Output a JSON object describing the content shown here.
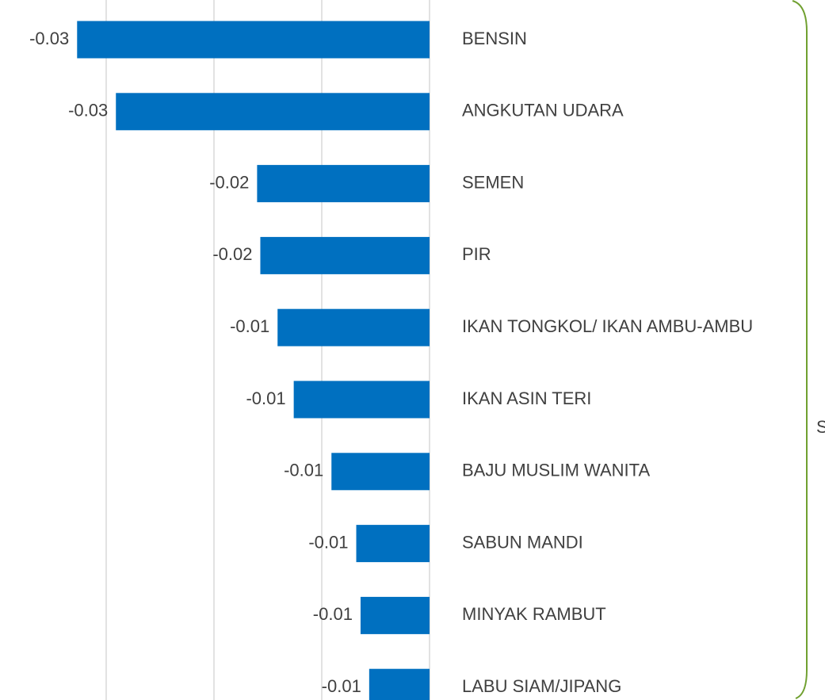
{
  "chart_data": {
    "type": "barh",
    "categories": [
      "BENSIN",
      "ANGKUTAN UDARA",
      "SEMEN",
      "PIR",
      "IKAN TONGKOL/ IKAN AMBU-AMBU",
      "IKAN ASIN TERI",
      "BAJU MUSLIM WANITA",
      "SABUN MANDI",
      "MINYAK RAMBUT",
      "LABU SIAM/JIPANG"
    ],
    "values": [
      -0.0327,
      -0.0291,
      -0.016,
      -0.0157,
      -0.0141,
      -0.0126,
      -0.0091,
      -0.0068,
      -0.0064,
      -0.0056
    ],
    "value_labels": [
      "-0.03",
      "-0.03",
      "-0.02",
      "-0.02",
      "-0.01",
      "-0.01",
      "-0.01",
      "-0.01",
      "-0.01",
      "-0.01"
    ],
    "color": "#0070c0",
    "xlim": [
      -0.04,
      0
    ],
    "xticks": [
      -0.04,
      -0.03,
      -0.02,
      -0.01,
      0
    ],
    "grid": true,
    "annotation": "S"
  }
}
